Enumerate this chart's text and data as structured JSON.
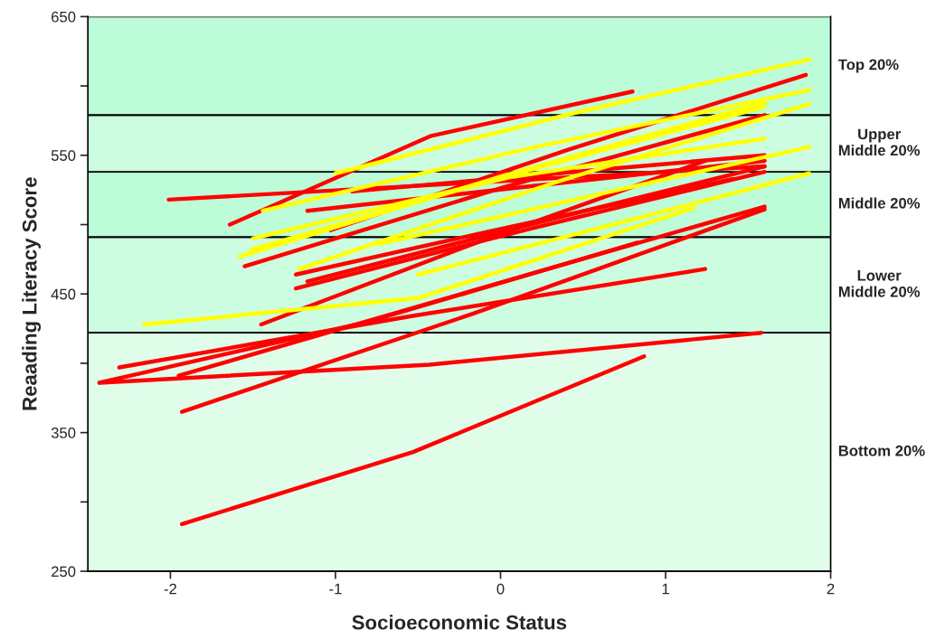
{
  "chart_data": {
    "type": "line",
    "xlabel": "Socioeconomic Status",
    "ylabel": "Reaading Literacy Score",
    "xlim": [
      -2.5,
      2
    ],
    "xticks": [
      -2,
      -1,
      0,
      1,
      2
    ],
    "ylim": [
      250,
      650
    ],
    "yticks": [
      250,
      {
        "value": 300,
        "label": null
      },
      350,
      {
        "value": 400,
        "label": null
      },
      450,
      {
        "value": 500,
        "label": null
      },
      550,
      {
        "value": 600,
        "label": null
      },
      650
    ],
    "grid": false,
    "legend": false,
    "line_style": "solid",
    "marker": "none",
    "bands": [
      {
        "axis": "y",
        "from": 250,
        "to": 422,
        "label": "Bottom 20%",
        "color": "#e0fdea"
      },
      {
        "axis": "y",
        "from": 422,
        "to": 491,
        "label": "Lower\nMiddle 20%",
        "color": "#ccfde0"
      },
      {
        "axis": "y",
        "from": 491,
        "to": 538,
        "label": "Middle 20%",
        "color": "#bdfcd8"
      },
      {
        "axis": "y",
        "from": 538,
        "to": 579,
        "label": "Upper\nMiddle 20%",
        "color": "#ccfde0"
      },
      {
        "axis": "y",
        "from": 579,
        "to": 650,
        "label": "Top 20%",
        "color": "#bdfcd8"
      }
    ],
    "series": [
      {
        "color": "#ff0000",
        "x": [
          -1.93,
          -0.53,
          0.87
        ],
        "values": [
          284,
          336,
          405
        ]
      },
      {
        "color": "#ff0000",
        "x": [
          -2.43,
          -0.43,
          1.58
        ],
        "values": [
          386,
          399,
          422
        ]
      },
      {
        "color": "#ff0000",
        "x": [
          -2.31,
          -0.54,
          1.24
        ],
        "values": [
          397,
          434,
          468
        ]
      },
      {
        "color": "#ff0000",
        "x": [
          -1.95,
          -0.18,
          1.6
        ],
        "values": [
          391,
          452,
          513
        ]
      },
      {
        "color": "#ff0000",
        "x": [
          -1.93,
          -0.16,
          1.6
        ],
        "values": [
          365,
          436,
          511
        ]
      },
      {
        "color": "#ff0000",
        "x": [
          -2.43,
          -0.8,
          0.83
        ],
        "values": [
          386,
          430,
          487
        ]
      },
      {
        "color": "#ff0000",
        "x": [
          -1.45,
          -0.1,
          1.24
        ],
        "values": [
          428,
          489,
          546
        ]
      },
      {
        "color": "#ff0000",
        "x": [
          -1.24,
          0.18,
          1.6
        ],
        "values": [
          454,
          497,
          538
        ]
      },
      {
        "color": "#ff0000",
        "x": [
          -1.24,
          0.08,
          1.41
        ],
        "values": [
          464,
          499,
          533
        ]
      },
      {
        "color": "#ff0000",
        "x": [
          -1.17,
          0.21,
          1.6
        ],
        "values": [
          459,
          501,
          542
        ]
      },
      {
        "color": "#ff0000",
        "x": [
          -1.55,
          0.02,
          1.6
        ],
        "values": [
          470,
          527,
          579
        ]
      },
      {
        "color": "#ff0000",
        "x": [
          -1.64,
          -0.42,
          0.8
        ],
        "values": [
          500,
          564,
          596
        ]
      },
      {
        "color": "#ff0000",
        "x": [
          -2.01,
          -0.2,
          1.6
        ],
        "values": [
          518,
          530,
          542
        ]
      },
      {
        "color": "#ff0000",
        "x": [
          -1.17,
          0.21,
          1.6
        ],
        "values": [
          510,
          528,
          546
        ]
      },
      {
        "color": "#ff0000",
        "x": [
          -0.9,
          0.35,
          1.6
        ],
        "values": [
          524,
          537,
          550
        ]
      },
      {
        "color": "#ff0000",
        "x": [
          -1.03,
          0.41,
          1.85
        ],
        "values": [
          496,
          554,
          608
        ]
      },
      {
        "color": "#ffff00",
        "x": [
          -2.16,
          -0.5,
          1.17
        ],
        "values": [
          428,
          447,
          512
        ]
      },
      {
        "color": "#ffff00",
        "x": [
          -0.5,
          0.68,
          1.87
        ],
        "values": [
          464,
          500,
          537
        ]
      },
      {
        "color": "#ffff00",
        "x": [
          -0.74,
          0.56,
          1.87
        ],
        "values": [
          486,
          521,
          556
        ]
      },
      {
        "color": "#ffff00",
        "x": [
          -1.22,
          0.32,
          1.87
        ],
        "values": [
          468,
          530,
          587
        ]
      },
      {
        "color": "#ffff00",
        "x": [
          -1.58,
          0.01,
          1.6
        ],
        "values": [
          477,
          535,
          588
        ]
      },
      {
        "color": "#ffff00",
        "x": [
          -1.51,
          0.04,
          1.6
        ],
        "values": [
          482,
          535,
          585
        ]
      },
      {
        "color": "#ffff00",
        "x": [
          -1.5,
          0.05,
          1.6
        ],
        "values": [
          490,
          534,
          562
        ]
      },
      {
        "color": "#ffff00",
        "x": [
          -1.44,
          0.21,
          1.87
        ],
        "values": [
          510,
          556,
          597
        ]
      },
      {
        "color": "#ffff00",
        "x": [
          -1.0,
          0.43,
          1.87
        ],
        "values": [
          537,
          580,
          619
        ]
      }
    ]
  }
}
